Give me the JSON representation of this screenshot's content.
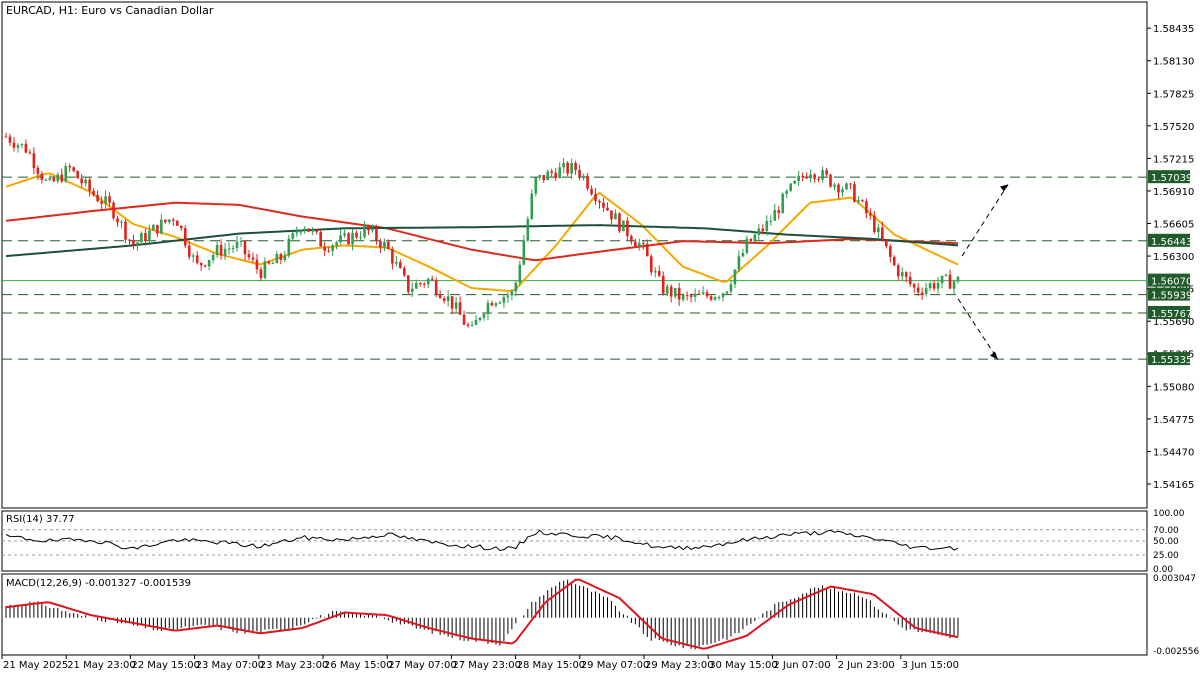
{
  "chart_data": {
    "type": "candlestick",
    "symbol_label": "EURCAD, H1:  Euro vs Canadian Dollar",
    "colors": {
      "frame": "#000000",
      "up_candle": "#2e9e4f",
      "down_candle": "#e0221c",
      "ma_fast": "#f5a800",
      "ma_mid": "#dc2a1e",
      "ma_slow": "#1d4f3a",
      "level_line": "#1f5c2a",
      "badge_bg": "#1f5c2a",
      "badge_text": "#ffffff",
      "last_price_line": "#3aa845",
      "macd_signal": "#e0141c",
      "macd_hist": "#000000",
      "rsi_line": "#000000",
      "grid_dots": "#9a9a9a"
    },
    "price_axis_ticks": [
      "1.58435",
      "1.58130",
      "1.57825",
      "1.57520",
      "1.57215",
      "1.56910",
      "1.56605",
      "1.56300",
      "1.55995",
      "1.55690",
      "1.55385",
      "1.55080",
      "1.54775",
      "1.54470",
      "1.54165"
    ],
    "ylim": [
      1.5394,
      1.5868
    ],
    "levels": [
      {
        "label": "1.57039",
        "value": 1.57039,
        "style": "dashed"
      },
      {
        "label": "1.56443",
        "value": 1.56443,
        "style": "dashed"
      },
      {
        "label": "1.56070",
        "value": 1.5607,
        "style": "solid-last"
      },
      {
        "label": "1.55939",
        "value": 1.55939,
        "style": "dashed"
      },
      {
        "label": "1.55767",
        "value": 1.55767,
        "style": "dashed"
      },
      {
        "label": "1.55335",
        "value": 1.55335,
        "style": "dashed"
      }
    ],
    "time_labels": [
      "21 May 2025",
      "21 May 23:00",
      "22 May 15:00",
      "23 May 07:00",
      "23 May 23:00",
      "26 May 15:00",
      "27 May 07:00",
      "27 May 23:00",
      "28 May 15:00",
      "29 May 07:00",
      "29 May 23:00",
      "30 May 15:00",
      "2 Jun 07:00",
      "2 Jun 23:00",
      "3 Jun 15:00"
    ],
    "candle_count": 240,
    "price_anchors": [
      [
        0,
        1.5742
      ],
      [
        10,
        1.573
      ],
      [
        20,
        1.5695
      ],
      [
        30,
        1.5712
      ],
      [
        40,
        1.569
      ],
      [
        50,
        1.5675
      ],
      [
        60,
        1.564
      ],
      [
        70,
        1.5655
      ],
      [
        80,
        1.5668
      ],
      [
        90,
        1.562
      ],
      [
        100,
        1.5635
      ],
      [
        110,
        1.564
      ],
      [
        120,
        1.5615
      ],
      [
        130,
        1.5628
      ],
      [
        140,
        1.5662
      ],
      [
        150,
        1.564
      ],
      [
        160,
        1.5645
      ],
      [
        170,
        1.5655
      ],
      [
        180,
        1.5638
      ],
      [
        190,
        1.56
      ],
      [
        200,
        1.5608
      ],
      [
        210,
        1.5588
      ],
      [
        220,
        1.5558
      ],
      [
        225,
        1.558
      ],
      [
        230,
        1.559
      ],
      [
        240,
        1.5595
      ],
      [
        250,
        1.57
      ],
      [
        260,
        1.571
      ],
      [
        270,
        1.5712
      ],
      [
        280,
        1.5685
      ],
      [
        290,
        1.566
      ],
      [
        300,
        1.564
      ],
      [
        310,
        1.56
      ],
      [
        320,
        1.559
      ],
      [
        330,
        1.5592
      ],
      [
        340,
        1.5598
      ],
      [
        350,
        1.564
      ],
      [
        360,
        1.566
      ],
      [
        370,
        1.569
      ],
      [
        380,
        1.5712
      ],
      [
        390,
        1.57
      ],
      [
        400,
        1.569
      ],
      [
        410,
        1.566
      ],
      [
        420,
        1.562
      ],
      [
        430,
        1.5598
      ],
      [
        440,
        1.5605
      ],
      [
        450,
        1.5607
      ]
    ],
    "moving_averages": [
      {
        "name": "fast",
        "points": [
          [
            0,
            1.5695
          ],
          [
            20,
            1.5708
          ],
          [
            40,
            1.569
          ],
          [
            60,
            1.566
          ],
          [
            80,
            1.5648
          ],
          [
            100,
            1.5632
          ],
          [
            120,
            1.5622
          ],
          [
            140,
            1.5636
          ],
          [
            160,
            1.564
          ],
          [
            180,
            1.5638
          ],
          [
            200,
            1.562
          ],
          [
            220,
            1.56
          ],
          [
            240,
            1.5597
          ],
          [
            260,
            1.564
          ],
          [
            280,
            1.569
          ],
          [
            300,
            1.566
          ],
          [
            320,
            1.562
          ],
          [
            340,
            1.5605
          ],
          [
            360,
            1.564
          ],
          [
            380,
            1.568
          ],
          [
            400,
            1.5685
          ],
          [
            420,
            1.565
          ],
          [
            450,
            1.5622
          ]
        ]
      },
      {
        "name": "mid",
        "points": [
          [
            0,
            1.5663
          ],
          [
            40,
            1.5672
          ],
          [
            80,
            1.568
          ],
          [
            110,
            1.5678
          ],
          [
            140,
            1.5667
          ],
          [
            180,
            1.5656
          ],
          [
            220,
            1.5636
          ],
          [
            250,
            1.5626
          ],
          [
            280,
            1.5634
          ],
          [
            320,
            1.5644
          ],
          [
            360,
            1.5642
          ],
          [
            400,
            1.5646
          ],
          [
            450,
            1.5642
          ]
        ]
      },
      {
        "name": "slow",
        "points": [
          [
            0,
            1.563
          ],
          [
            60,
            1.564
          ],
          [
            110,
            1.5651
          ],
          [
            160,
            1.5656
          ],
          [
            220,
            1.5657
          ],
          [
            280,
            1.5659
          ],
          [
            330,
            1.5656
          ],
          [
            370,
            1.565
          ],
          [
            410,
            1.5646
          ],
          [
            450,
            1.564
          ]
        ]
      }
    ],
    "rsi": {
      "label": "RSI(14) 37.77",
      "ticks": [
        "100.00",
        "70.00",
        "50.00",
        "25.00",
        "0.00"
      ],
      "levels": [
        70,
        50,
        25
      ],
      "anchors": [
        [
          0,
          58
        ],
        [
          20,
          50
        ],
        [
          40,
          53
        ],
        [
          60,
          36
        ],
        [
          80,
          52
        ],
        [
          100,
          48
        ],
        [
          120,
          40
        ],
        [
          140,
          56
        ],
        [
          160,
          52
        ],
        [
          180,
          62
        ],
        [
          200,
          48
        ],
        [
          220,
          40
        ],
        [
          240,
          35
        ],
        [
          250,
          66
        ],
        [
          270,
          60
        ],
        [
          290,
          55
        ],
        [
          310,
          37
        ],
        [
          330,
          40
        ],
        [
          350,
          52
        ],
        [
          370,
          62
        ],
        [
          390,
          66
        ],
        [
          410,
          55
        ],
        [
          430,
          38
        ],
        [
          450,
          37.77
        ]
      ]
    },
    "macd": {
      "label": "MACD(12,26,9) -0.001327 -0.001539",
      "ticks": [
        "0.003047",
        "-0.002556"
      ],
      "anchors": [
        [
          0,
          0.0008
        ],
        [
          20,
          0.0012
        ],
        [
          40,
          0.0002
        ],
        [
          60,
          -0.0004
        ],
        [
          80,
          -0.001
        ],
        [
          100,
          -0.0006
        ],
        [
          120,
          -0.0012
        ],
        [
          140,
          -0.0008
        ],
        [
          160,
          0.0004
        ],
        [
          180,
          0.0002
        ],
        [
          200,
          -0.0008
        ],
        [
          220,
          -0.0016
        ],
        [
          240,
          -0.002
        ],
        [
          255,
          0.0012
        ],
        [
          270,
          0.003
        ],
        [
          290,
          0.0015
        ],
        [
          310,
          -0.0016
        ],
        [
          330,
          -0.0024
        ],
        [
          350,
          -0.0014
        ],
        [
          370,
          0.001
        ],
        [
          390,
          0.0024
        ],
        [
          410,
          0.0018
        ],
        [
          430,
          -0.0008
        ],
        [
          450,
          -0.0015
        ]
      ]
    }
  }
}
